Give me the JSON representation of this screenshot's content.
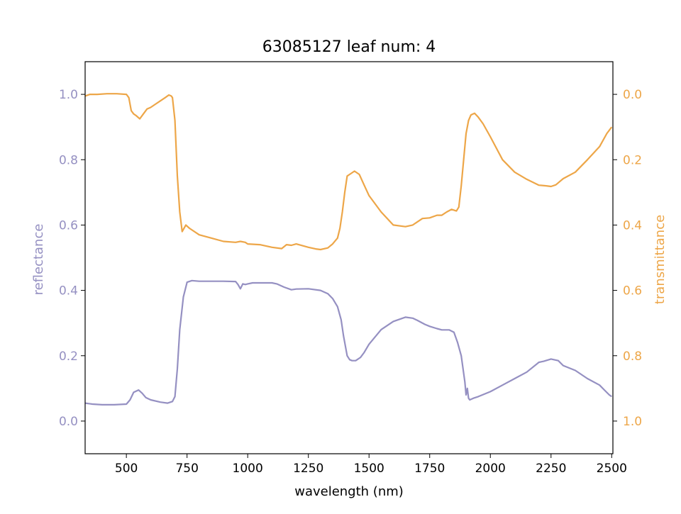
{
  "chart_data": {
    "type": "line",
    "title": "63085127 leaf num: 4",
    "xlabel": "wavelength (nm)",
    "xlim": [
      330,
      2505
    ],
    "x_ticks": [
      500,
      750,
      1000,
      1250,
      1500,
      1750,
      2000,
      2250,
      2500
    ],
    "grid": false,
    "legend": "none",
    "left_axis": {
      "label": "reflectance",
      "color": "#9590c2",
      "ylim": [
        -0.1,
        1.1
      ],
      "ticks": [
        0.0,
        0.2,
        0.4,
        0.6,
        0.8,
        1.0
      ]
    },
    "right_axis": {
      "label": "transmittance",
      "color": "#eda648",
      "ylim": [
        1.1,
        -0.1
      ],
      "inverted": true,
      "ticks": [
        0.0,
        0.2,
        0.4,
        0.6,
        0.8,
        1.0
      ]
    },
    "series": [
      {
        "axis": "left",
        "color": "#9590c2",
        "x": [
          330,
          360,
          400,
          450,
          500,
          515,
          530,
          550,
          565,
          580,
          600,
          640,
          670,
          690,
          700,
          710,
          720,
          735,
          750,
          770,
          800,
          850,
          900,
          950,
          960,
          970,
          980,
          990,
          1000,
          1020,
          1050,
          1100,
          1120,
          1150,
          1180,
          1200,
          1250,
          1300,
          1330,
          1350,
          1370,
          1385,
          1395,
          1410,
          1420,
          1430,
          1445,
          1465,
          1480,
          1500,
          1550,
          1600,
          1650,
          1680,
          1700,
          1730,
          1750,
          1780,
          1800,
          1830,
          1850,
          1865,
          1880,
          1895,
          1900,
          1905,
          1910,
          1915,
          1930,
          1950,
          2000,
          2050,
          2100,
          2150,
          2200,
          2220,
          2250,
          2280,
          2300,
          2350,
          2400,
          2450,
          2470,
          2490,
          2500
        ],
        "values": [
          0.055,
          0.052,
          0.05,
          0.05,
          0.052,
          0.065,
          0.088,
          0.095,
          0.085,
          0.072,
          0.065,
          0.058,
          0.055,
          0.06,
          0.075,
          0.16,
          0.28,
          0.38,
          0.425,
          0.43,
          0.428,
          0.428,
          0.428,
          0.427,
          0.418,
          0.405,
          0.42,
          0.418,
          0.42,
          0.423,
          0.423,
          0.423,
          0.42,
          0.41,
          0.402,
          0.404,
          0.405,
          0.4,
          0.39,
          0.375,
          0.35,
          0.31,
          0.26,
          0.2,
          0.188,
          0.185,
          0.185,
          0.195,
          0.21,
          0.235,
          0.28,
          0.305,
          0.318,
          0.315,
          0.308,
          0.296,
          0.29,
          0.283,
          0.279,
          0.279,
          0.272,
          0.24,
          0.2,
          0.12,
          0.08,
          0.1,
          0.07,
          0.065,
          0.07,
          0.075,
          0.09,
          0.11,
          0.13,
          0.15,
          0.18,
          0.183,
          0.19,
          0.185,
          0.17,
          0.155,
          0.13,
          0.11,
          0.095,
          0.08,
          0.075
        ]
      },
      {
        "axis": "right",
        "color": "#eda648",
        "x": [
          330,
          350,
          380,
          420,
          460,
          500,
          510,
          520,
          530,
          540,
          555,
          570,
          585,
          600,
          620,
          640,
          660,
          675,
          685,
          690,
          700,
          710,
          720,
          730,
          745,
          760,
          800,
          850,
          900,
          950,
          970,
          990,
          1000,
          1050,
          1100,
          1140,
          1160,
          1180,
          1200,
          1250,
          1280,
          1300,
          1330,
          1350,
          1370,
          1380,
          1390,
          1400,
          1410,
          1420,
          1440,
          1460,
          1480,
          1500,
          1550,
          1600,
          1650,
          1680,
          1700,
          1720,
          1750,
          1780,
          1800,
          1820,
          1840,
          1860,
          1870,
          1880,
          1890,
          1900,
          1910,
          1920,
          1935,
          1950,
          1970,
          2000,
          2050,
          2100,
          2150,
          2200,
          2230,
          2250,
          2270,
          2300,
          2350,
          2400,
          2450,
          2480,
          2500
        ],
        "values": [
          0.005,
          0.0,
          0.0,
          -0.002,
          -0.002,
          0.0,
          0.01,
          0.05,
          0.06,
          0.065,
          0.075,
          0.06,
          0.045,
          0.04,
          0.03,
          0.02,
          0.01,
          0.002,
          0.005,
          0.01,
          0.08,
          0.25,
          0.36,
          0.42,
          0.4,
          0.41,
          0.43,
          0.44,
          0.45,
          0.453,
          0.45,
          0.453,
          0.458,
          0.46,
          0.468,
          0.472,
          0.46,
          0.462,
          0.458,
          0.468,
          0.473,
          0.475,
          0.47,
          0.458,
          0.44,
          0.41,
          0.36,
          0.3,
          0.25,
          0.245,
          0.235,
          0.245,
          0.278,
          0.31,
          0.36,
          0.4,
          0.405,
          0.4,
          0.39,
          0.38,
          0.378,
          0.37,
          0.37,
          0.36,
          0.352,
          0.357,
          0.345,
          0.28,
          0.2,
          0.12,
          0.08,
          0.063,
          0.058,
          0.07,
          0.09,
          0.13,
          0.2,
          0.238,
          0.26,
          0.278,
          0.28,
          0.282,
          0.277,
          0.258,
          0.238,
          0.2,
          0.16,
          0.12,
          0.1
        ]
      }
    ]
  }
}
